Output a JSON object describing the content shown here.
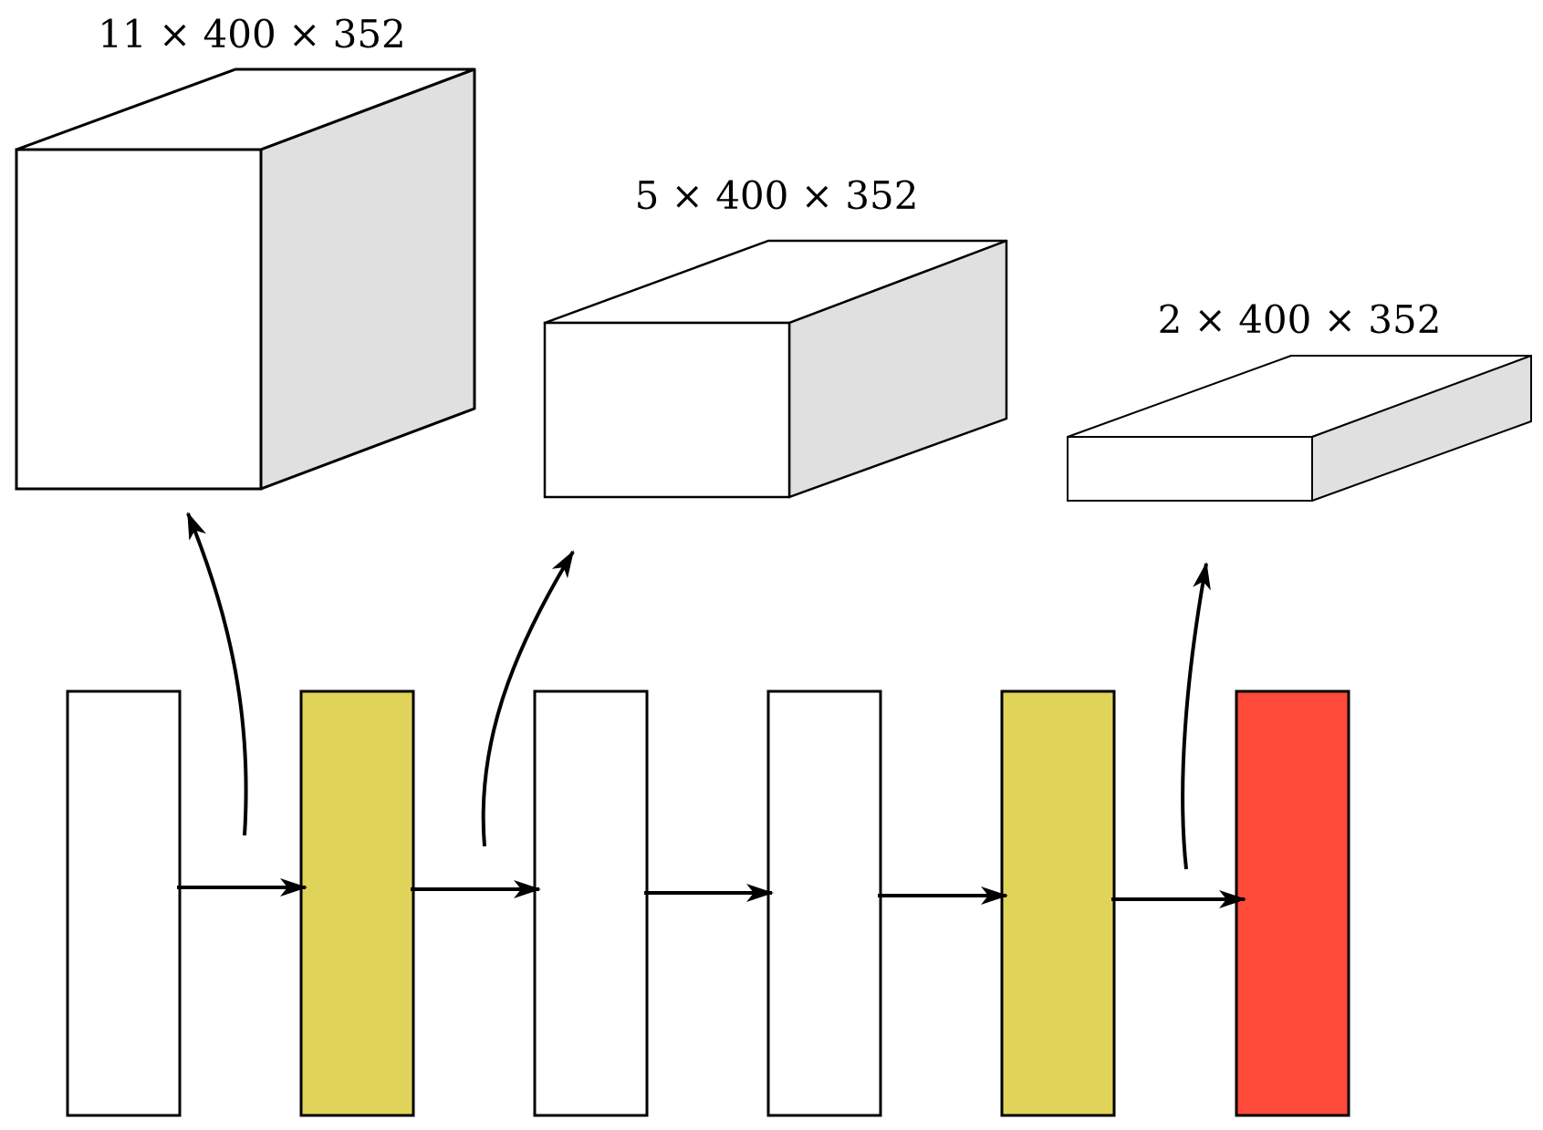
{
  "tensors": [
    {
      "label": "11 × 400 × 352",
      "depth": 11
    },
    {
      "label": "5 × 400 × 352",
      "depth": 5
    },
    {
      "label": "2 × 400 × 352",
      "depth": 2
    }
  ],
  "layers": [
    {
      "color": "#ffffff"
    },
    {
      "color": "#e0d35a"
    },
    {
      "color": "#ffffff"
    },
    {
      "color": "#ffffff"
    },
    {
      "color": "#e0d35a"
    },
    {
      "color": "#ff4a3a"
    }
  ],
  "colors": {
    "stroke": "#000000",
    "side_face": "#e0e0e0",
    "front_face": "#ffffff",
    "top_face": "#ffffff"
  }
}
